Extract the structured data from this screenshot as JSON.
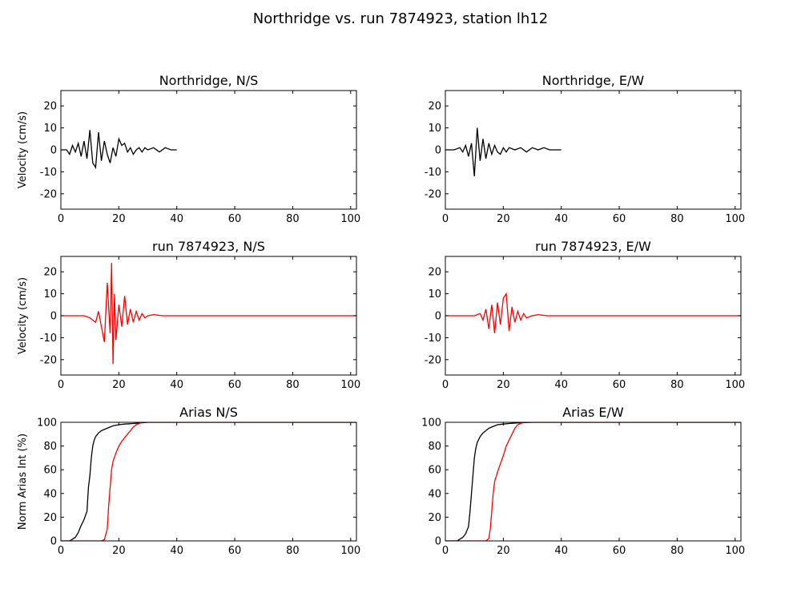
{
  "figure_title": "Northridge vs. run 7874923, station lh12",
  "chart_data": [
    {
      "type": "line",
      "title": "Northridge, N/S",
      "ylabel": "Velocity (cm/s)",
      "xlim": [
        0,
        102
      ],
      "ylim": [
        -27,
        27
      ],
      "xticks": [
        0,
        20,
        40,
        60,
        80,
        100
      ],
      "yticks": [
        -20,
        -10,
        0,
        10,
        20
      ],
      "series": [
        {
          "color": "#000000",
          "x": [
            0,
            2,
            3,
            4,
            5,
            6,
            7,
            8,
            9,
            10,
            11,
            12,
            13,
            14,
            15,
            16,
            17,
            18,
            19,
            20,
            21,
            22,
            23,
            24,
            25,
            26,
            27,
            28,
            29,
            30,
            32,
            34,
            36,
            38,
            40
          ],
          "y": [
            0,
            0,
            -2,
            2,
            -1,
            3,
            -3,
            4,
            -4,
            9,
            -6,
            -8,
            8,
            -5,
            4,
            -2,
            -6,
            1,
            -3,
            5,
            2,
            3,
            -1,
            1,
            -2,
            0,
            1,
            -1,
            1,
            0,
            1,
            -1,
            1,
            0,
            0
          ]
        }
      ]
    },
    {
      "type": "line",
      "title": "Northridge, E/W",
      "ylabel": "",
      "xlim": [
        0,
        102
      ],
      "ylim": [
        -27,
        27
      ],
      "xticks": [
        0,
        20,
        40,
        60,
        80,
        100
      ],
      "yticks": [
        -20,
        -10,
        0,
        10,
        20
      ],
      "series": [
        {
          "color": "#000000",
          "x": [
            0,
            3,
            5,
            6,
            7,
            8,
            9,
            10,
            11,
            12,
            13,
            14,
            15,
            16,
            17,
            18,
            19,
            20,
            21,
            22,
            24,
            26,
            28,
            30,
            32,
            34,
            36,
            38,
            40
          ],
          "y": [
            0,
            0,
            1,
            -1,
            2,
            -3,
            3,
            -12,
            10,
            -5,
            5,
            -4,
            3,
            -2,
            2,
            -1,
            -2,
            1,
            -1,
            1,
            0,
            1,
            -1,
            1,
            0,
            1,
            0,
            0,
            0
          ]
        }
      ]
    },
    {
      "type": "line",
      "title": "run 7874923, N/S",
      "ylabel": "Velocity (cm/s)",
      "xlim": [
        0,
        102
      ],
      "ylim": [
        -27,
        27
      ],
      "xticks": [
        0,
        20,
        40,
        60,
        80,
        100
      ],
      "yticks": [
        -20,
        -10,
        0,
        10,
        20
      ],
      "series": [
        {
          "color": "#ff0000",
          "x": [
            0,
            8,
            10,
            11,
            12,
            13,
            14,
            15,
            16,
            17,
            17.5,
            18,
            18.5,
            19,
            20,
            21,
            22,
            23,
            24,
            25,
            26,
            27,
            28,
            29,
            30,
            32,
            35,
            40,
            102
          ],
          "y": [
            0,
            0,
            -1,
            -2,
            -3,
            2,
            -5,
            -12,
            15,
            -8,
            24,
            -22,
            10,
            -11,
            5,
            -5,
            9,
            -4,
            3,
            -3,
            2,
            -2,
            1,
            -1,
            0,
            0.5,
            0,
            0,
            0
          ]
        }
      ]
    },
    {
      "type": "line",
      "title": "run 7874923, E/W",
      "ylabel": "",
      "xlim": [
        0,
        102
      ],
      "ylim": [
        -27,
        27
      ],
      "xticks": [
        0,
        20,
        40,
        60,
        80,
        100
      ],
      "yticks": [
        -20,
        -10,
        0,
        10,
        20
      ],
      "series": [
        {
          "color": "#ff0000",
          "x": [
            0,
            10,
            12,
            13,
            14,
            15,
            16,
            17,
            18,
            19,
            20,
            21,
            22,
            23,
            24,
            25,
            26,
            27,
            28,
            30,
            32,
            35,
            102
          ],
          "y": [
            0,
            0,
            1,
            -2,
            3,
            -6,
            5,
            -8,
            6,
            -4,
            8,
            10,
            -7,
            4,
            -3,
            2,
            -2,
            1,
            -1,
            0,
            0.5,
            0,
            0
          ]
        }
      ]
    },
    {
      "type": "line",
      "title": "Arias N/S",
      "ylabel": "Norm Arias Int (%)",
      "xlim": [
        0,
        102
      ],
      "ylim": [
        0,
        100
      ],
      "xticks": [
        0,
        20,
        40,
        60,
        80,
        100
      ],
      "yticks": [
        0,
        20,
        40,
        60,
        80,
        100
      ],
      "series": [
        {
          "color": "#000000",
          "x": [
            0,
            3,
            5,
            6,
            7,
            8,
            9,
            9.5,
            10,
            10.5,
            11,
            11.5,
            12,
            13,
            14,
            15,
            16,
            18,
            20,
            22,
            25,
            30,
            102
          ],
          "y": [
            0,
            0,
            3,
            7,
            13,
            18,
            25,
            45,
            55,
            70,
            80,
            85,
            88,
            91,
            93,
            94,
            95,
            97,
            98,
            98.5,
            99,
            100,
            100
          ]
        },
        {
          "color": "#ff0000",
          "x": [
            0,
            14,
            15,
            16,
            16.5,
            17,
            17.5,
            18,
            19,
            20,
            21,
            22,
            23,
            24,
            25,
            26,
            27,
            28,
            102
          ],
          "y": [
            0,
            0,
            1,
            10,
            30,
            45,
            60,
            67,
            74,
            80,
            84,
            87,
            90,
            93,
            96,
            98,
            99,
            100,
            100
          ]
        }
      ]
    },
    {
      "type": "line",
      "title": "Arias E/W",
      "ylabel": "",
      "xlim": [
        0,
        102
      ],
      "ylim": [
        0,
        100
      ],
      "xticks": [
        0,
        20,
        40,
        60,
        80,
        100
      ],
      "yticks": [
        0,
        20,
        40,
        60,
        80,
        100
      ],
      "series": [
        {
          "color": "#000000",
          "x": [
            0,
            4,
            6,
            7,
            8,
            8.5,
            9,
            9.5,
            10,
            10.5,
            11,
            12,
            13,
            14,
            15,
            16,
            18,
            20,
            22,
            25,
            30,
            102
          ],
          "y": [
            0,
            0,
            3,
            6,
            12,
            25,
            40,
            55,
            70,
            78,
            83,
            88,
            91,
            93,
            95,
            96,
            98,
            98.5,
            99,
            99.5,
            100,
            100
          ]
        },
        {
          "color": "#ff0000",
          "x": [
            0,
            14,
            15,
            15.5,
            16,
            16.5,
            17,
            18,
            19,
            20,
            21,
            22,
            23,
            24,
            25,
            26,
            27,
            102
          ],
          "y": [
            0,
            0,
            2,
            10,
            25,
            40,
            50,
            58,
            65,
            72,
            80,
            85,
            90,
            95,
            98,
            99,
            100,
            100
          ]
        }
      ]
    }
  ]
}
